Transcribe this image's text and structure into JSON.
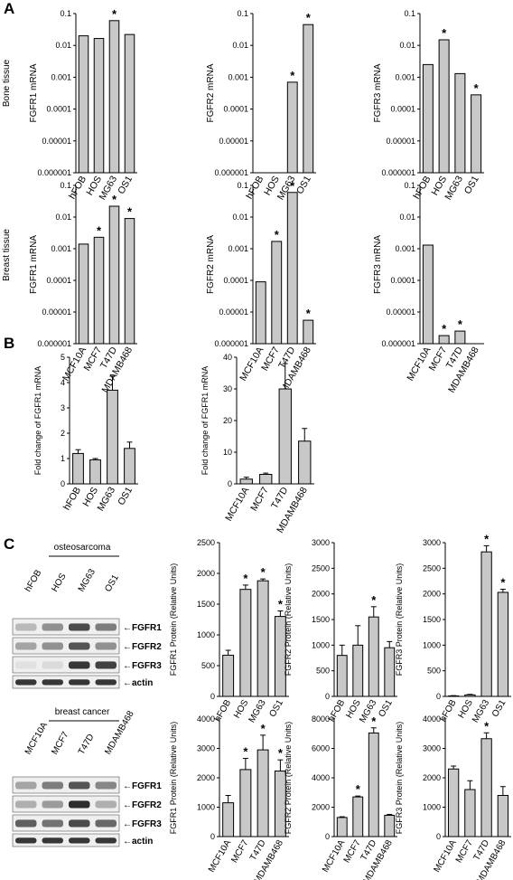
{
  "panels": {
    "A": "A",
    "B": "B",
    "C": "C"
  },
  "row_labels": {
    "bone": "Bone tissue",
    "breast": "Breast tissue"
  },
  "blots": [
    {
      "group_label": "osteosarcoma",
      "lanes": [
        "hFOB",
        "HOS",
        "MG63",
        "OS1"
      ],
      "bands": [
        "FGFR1",
        "FGFR2",
        "FGFR3",
        "actin"
      ]
    },
    {
      "group_label": "breast cancer",
      "lanes": [
        "MCF10A",
        "MCF7",
        "T47D",
        "MDAMB468"
      ],
      "bands": [
        "FGFR1",
        "FGFR2",
        "FGFR3",
        "actin"
      ]
    }
  ],
  "chart_data": [
    {
      "id": "A-bone-FGFR1",
      "type": "bar",
      "scale": "log",
      "categories": [
        "hFOB",
        "HOS",
        "MG63",
        "OS1"
      ],
      "values": [
        0.02,
        0.0165,
        0.06,
        0.022
      ],
      "significant": [
        false,
        false,
        true,
        false
      ],
      "ylabel": "FGFR1 mRNA",
      "ylim": [
        1e-06,
        0.1
      ],
      "ticks": [
        "0.1",
        "0.01",
        "0.001",
        "0.0001",
        "0.00001",
        "0.000001"
      ]
    },
    {
      "id": "A-bone-FGFR2",
      "type": "bar",
      "scale": "log",
      "categories": [
        "hFOB",
        "HOS",
        "MG63",
        "OS1"
      ],
      "values": [
        1e-06,
        1e-06,
        0.0007,
        0.045
      ],
      "significant": [
        false,
        false,
        true,
        true
      ],
      "ylabel": "FGFR2 mRNA",
      "ylim": [
        1e-06,
        0.1
      ],
      "ticks": [
        "0.1",
        "0.01",
        "0.001",
        "0.0001",
        "0.00001",
        "0.000001"
      ]
    },
    {
      "id": "A-bone-FGFR3",
      "type": "bar",
      "scale": "log",
      "categories": [
        "hFOB",
        "HOS",
        "MG63",
        "OS1"
      ],
      "values": [
        0.0025,
        0.015,
        0.0013,
        0.00028
      ],
      "significant": [
        false,
        true,
        false,
        true
      ],
      "ylabel": "FGFR3 mRNA",
      "ylim": [
        1e-06,
        0.1
      ],
      "ticks": [
        "0.1",
        "0.01",
        "0.001",
        "0.0001",
        "0.00001",
        "0.000001"
      ]
    },
    {
      "id": "A-breast-FGFR1",
      "type": "bar",
      "scale": "log",
      "categories": [
        "MCF10A",
        "MCF7",
        "T47D",
        "MDAMB468"
      ],
      "values": [
        0.0014,
        0.0023,
        0.022,
        0.009
      ],
      "significant": [
        false,
        true,
        true,
        true
      ],
      "ylabel": "FGFR1 mRNA",
      "ylim": [
        1e-06,
        0.1
      ],
      "ticks": [
        "0.1",
        "0.01",
        "0.001",
        "0.0001",
        "0.00001",
        "0.000001"
      ]
    },
    {
      "id": "A-breast-FGFR2",
      "type": "bar",
      "scale": "log",
      "categories": [
        "MCF10A",
        "MCF7",
        "T47D",
        "MDAMB468"
      ],
      "values": [
        9e-05,
        0.0017,
        0.06,
        5.5e-06
      ],
      "significant": [
        false,
        true,
        true,
        true
      ],
      "ylabel": "FGFR2 mRNA",
      "ylim": [
        1e-06,
        0.1
      ],
      "ticks": [
        "0.1",
        "0.01",
        "0.001",
        "0.0001",
        "0.00001",
        "0.000001"
      ]
    },
    {
      "id": "A-breast-FGFR3",
      "type": "bar",
      "scale": "log",
      "categories": [
        "MCF10A",
        "MCF7",
        "T47D",
        "MDAMB468"
      ],
      "values": [
        0.0013,
        1.8e-06,
        2.5e-06,
        1e-06
      ],
      "significant": [
        false,
        true,
        true,
        false
      ],
      "ylabel": "FGFR3 mRNA",
      "ylim": [
        1e-06,
        0.1
      ],
      "ticks": [
        "0.1",
        "0.01",
        "0.001",
        "0.0001",
        "0.00001",
        "0.000001"
      ]
    },
    {
      "id": "B-bone",
      "type": "bar",
      "scale": "linear",
      "categories": [
        "hFOB",
        "HOS",
        "MG63",
        "OS1"
      ],
      "values": [
        1.2,
        0.95,
        3.7,
        1.4
      ],
      "errors": [
        0.15,
        0.05,
        0.55,
        0.25
      ],
      "significant": [
        false,
        false,
        false,
        false
      ],
      "ylabel": "Fold change of FGFR1 mRNA",
      "ylim": [
        0,
        5
      ],
      "ticks": [
        "0",
        "1",
        "2",
        "3",
        "4",
        "5"
      ]
    },
    {
      "id": "B-breast",
      "type": "bar",
      "scale": "linear",
      "categories": [
        "MCF10A",
        "MCF7",
        "T47D",
        "MDAMB468"
      ],
      "values": [
        1.5,
        3,
        30,
        13.5
      ],
      "errors": [
        0.6,
        0.4,
        8,
        4
      ],
      "significant": [
        false,
        false,
        false,
        false
      ],
      "ylabel": "Fold change of FGFR1 mRNA",
      "ylim": [
        0,
        40
      ],
      "ticks": [
        "0",
        "10",
        "20",
        "30",
        "40"
      ]
    },
    {
      "id": "C-bone-FGFR1",
      "type": "bar",
      "scale": "linear",
      "categories": [
        "hFOB",
        "HOS",
        "MG63",
        "OS1"
      ],
      "values": [
        670,
        1740,
        1880,
        1300
      ],
      "errors": [
        80,
        70,
        30,
        90
      ],
      "significant": [
        false,
        true,
        true,
        true
      ],
      "ylabel": "FGFR1 Protein  (Relative Units)",
      "ylim": [
        0,
        2500
      ],
      "ticks": [
        "0",
        "500",
        "1000",
        "1500",
        "2000",
        "2500"
      ]
    },
    {
      "id": "C-bone-FGFR2",
      "type": "bar",
      "scale": "linear",
      "categories": [
        "hFOB",
        "HOS",
        "MG63",
        "OS1"
      ],
      "values": [
        800,
        1000,
        1550,
        950
      ],
      "errors": [
        200,
        380,
        200,
        120
      ],
      "significant": [
        false,
        false,
        true,
        false
      ],
      "ylabel": "FGFR2 Protein  (Relative Units)",
      "ylim": [
        0,
        3000
      ],
      "ticks": [
        "0",
        "500",
        "1000",
        "1500",
        "2000",
        "2500",
        "3000"
      ]
    },
    {
      "id": "C-bone-FGFR3",
      "type": "bar",
      "scale": "linear",
      "categories": [
        "hFOB",
        "HOS",
        "MG63",
        "OS1"
      ],
      "values": [
        10,
        30,
        2820,
        2030
      ],
      "errors": [
        5,
        10,
        120,
        60
      ],
      "significant": [
        false,
        false,
        true,
        true
      ],
      "ylabel": "FGFR3 Protein  (Relative Units)",
      "ylim": [
        0,
        3000
      ],
      "ticks": [
        "0",
        "500",
        "1000",
        "1500",
        "2000",
        "2500",
        "3000"
      ]
    },
    {
      "id": "C-breast-FGFR1",
      "type": "bar",
      "scale": "linear",
      "categories": [
        "MCF10A",
        "MCF7",
        "T47D",
        "MDAMB468"
      ],
      "values": [
        1150,
        2280,
        2950,
        2230
      ],
      "errors": [
        250,
        380,
        500,
        380
      ],
      "significant": [
        false,
        true,
        true,
        true
      ],
      "ylabel": "FGFR1 Protein  (Relative Units)",
      "ylim": [
        0,
        4000
      ],
      "ticks": [
        "0",
        "1000",
        "2000",
        "3000",
        "4000"
      ]
    },
    {
      "id": "C-breast-FGFR2",
      "type": "bar",
      "scale": "linear",
      "categories": [
        "MCF10A",
        "MCF7",
        "T47D",
        "MDAMB468"
      ],
      "values": [
        1300,
        2700,
        7050,
        1450
      ],
      "errors": [
        50,
        60,
        350,
        60
      ],
      "significant": [
        false,
        true,
        true,
        false
      ],
      "ylabel": "FGFR2 Protein  (Relative Units)",
      "ylim": [
        0,
        8000
      ],
      "ticks": [
        "0",
        "2000",
        "4000",
        "6000",
        "8000"
      ]
    },
    {
      "id": "C-breast-FGFR3",
      "type": "bar",
      "scale": "linear",
      "categories": [
        "MCF10A",
        "MCF7",
        "T47D",
        "MDAMB468"
      ],
      "values": [
        2300,
        1600,
        3330,
        1400
      ],
      "errors": [
        100,
        300,
        200,
        300
      ],
      "significant": [
        false,
        false,
        true,
        false
      ],
      "ylabel": "FGFR3 Protein  (Relative Units)",
      "ylim": [
        0,
        4000
      ],
      "ticks": [
        "0",
        "1000",
        "2000",
        "3000",
        "4000"
      ]
    }
  ]
}
